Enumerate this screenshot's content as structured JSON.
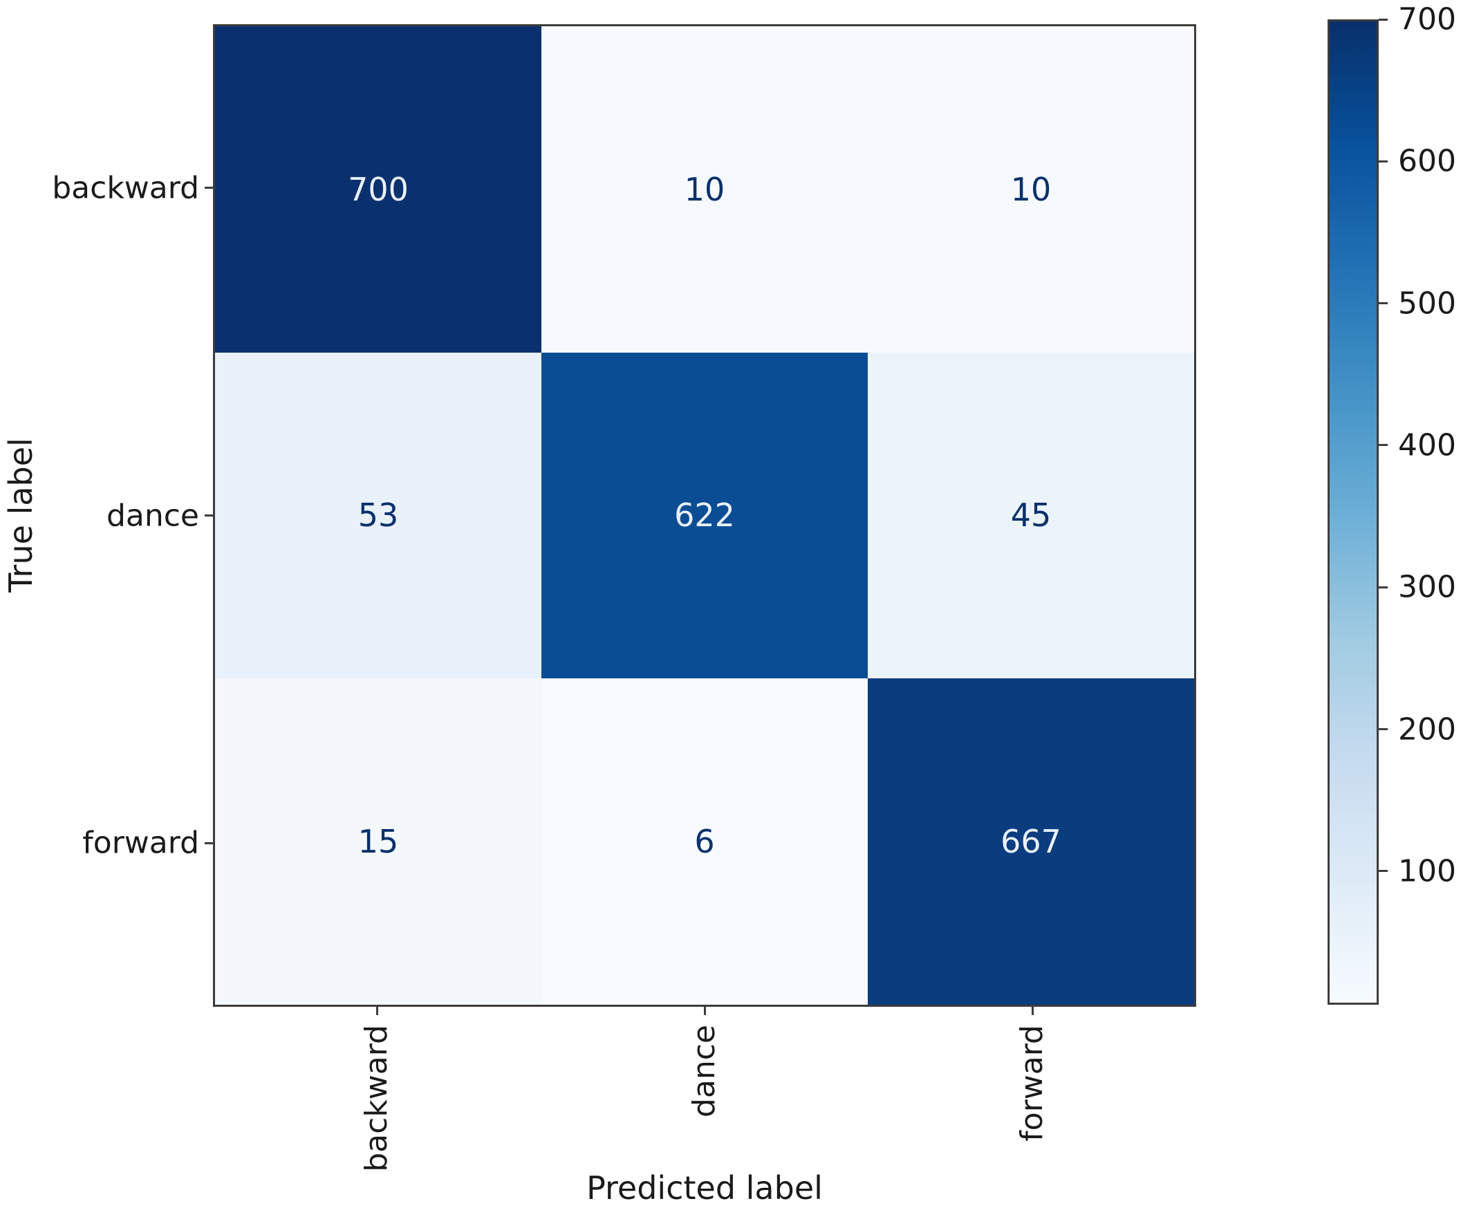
{
  "chart_data": {
    "type": "heatmap",
    "subtype": "confusion-matrix",
    "xlabel": "Predicted label",
    "ylabel": "True label",
    "x_tick_labels": [
      "backward",
      "dance",
      "forward"
    ],
    "y_tick_labels": [
      "backward",
      "dance",
      "forward"
    ],
    "matrix": [
      [
        700,
        10,
        10
      ],
      [
        53,
        622,
        45
      ],
      [
        15,
        6,
        667
      ]
    ],
    "cell_colors": [
      [
        "#0a316e",
        "#f6fafe",
        "#f6fafe"
      ],
      [
        "#e9f1fa",
        "#0a4d94",
        "#ecf4fb"
      ],
      [
        "#f4f8fd",
        "#f7fbff",
        "#0a3c7e"
      ]
    ],
    "cell_text_colors": [
      [
        "#e8f0fa",
        "#08306b",
        "#08306b"
      ],
      [
        "#08306b",
        "#e8f0fa",
        "#08306b"
      ],
      [
        "#08306b",
        "#08306b",
        "#e8f0fa"
      ]
    ],
    "colormap": "Blues",
    "vmin": 6,
    "vmax": 700,
    "grid": false,
    "colorbar": {
      "position": "right",
      "ticks": [
        700,
        600,
        500,
        400,
        300,
        200,
        100
      ],
      "gradient": [
        "#08306b 0%",
        "#08519c 12.5%",
        "#2171b5 25%",
        "#4292c6 37.5%",
        "#6baed6 50%",
        "#9ecae1 62.5%",
        "#c6dbef 75%",
        "#deebf7 87.5%",
        "#f7fbff 100%"
      ]
    },
    "axes_border_color": "#3c3c3c",
    "text_color": "#1a1a1a",
    "background": "#ffffff"
  }
}
